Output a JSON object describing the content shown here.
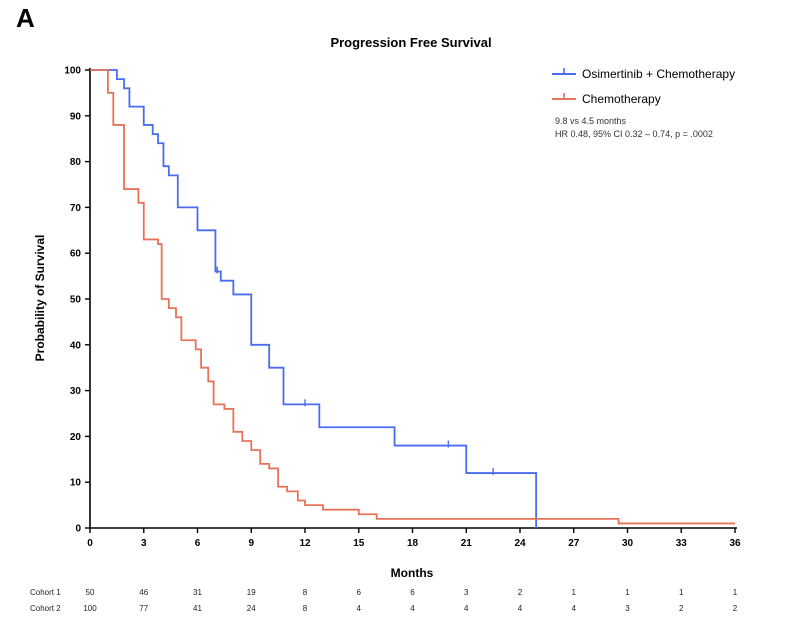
{
  "panel_label": "A",
  "chart_data": {
    "type": "line",
    "title": "Progression Free Survival",
    "xlabel": "Months",
    "ylabel": "Probability of Survival",
    "xlim": [
      0,
      36
    ],
    "ylim": [
      0,
      100
    ],
    "x_ticks": [
      "0",
      "3",
      "6",
      "9",
      "12",
      "15",
      "18",
      "21",
      "24",
      "27",
      "30",
      "33",
      "36"
    ],
    "y_ticks": [
      "0",
      "10",
      "20",
      "30",
      "40",
      "50",
      "60",
      "70",
      "80",
      "90",
      "100"
    ],
    "legend_position": "top-right",
    "annotation": [
      "9.8 vs 4.5 months",
      "HR 0.48, 95% CI 0.32 – 0.74, p = .0002"
    ],
    "series": [
      {
        "name": "Osimertinib + Chemotherapy",
        "color": "#4a6cf0",
        "steps": [
          [
            0,
            100
          ],
          [
            1.5,
            98
          ],
          [
            1.9,
            96
          ],
          [
            2.2,
            92
          ],
          [
            3.0,
            88
          ],
          [
            3.5,
            86
          ],
          [
            3.8,
            84
          ],
          [
            4.1,
            79
          ],
          [
            4.4,
            77
          ],
          [
            4.9,
            70
          ],
          [
            6.0,
            65
          ],
          [
            7.0,
            56
          ],
          [
            7.3,
            54
          ],
          [
            8.0,
            51
          ],
          [
            9.0,
            40
          ],
          [
            10.0,
            35
          ],
          [
            10.8,
            27
          ],
          [
            12.8,
            22
          ],
          [
            17.0,
            18
          ],
          [
            21.0,
            12
          ],
          [
            24.9,
            0
          ]
        ],
        "end_x": 24.9,
        "censors": [
          [
            7.1,
            56
          ],
          [
            12.0,
            27
          ],
          [
            20.0,
            18
          ],
          [
            22.5,
            12
          ]
        ]
      },
      {
        "name": "Chemotherapy",
        "color": "#e8735a",
        "steps": [
          [
            0,
            100
          ],
          [
            1.0,
            95
          ],
          [
            1.3,
            88
          ],
          [
            1.9,
            74
          ],
          [
            2.7,
            71
          ],
          [
            3.0,
            63
          ],
          [
            3.8,
            62
          ],
          [
            4.0,
            50
          ],
          [
            4.4,
            48
          ],
          [
            4.8,
            46
          ],
          [
            5.1,
            41
          ],
          [
            5.9,
            39
          ],
          [
            6.2,
            35
          ],
          [
            6.6,
            32
          ],
          [
            6.9,
            27
          ],
          [
            7.5,
            26
          ],
          [
            8.0,
            21
          ],
          [
            8.5,
            19
          ],
          [
            9.0,
            17
          ],
          [
            9.5,
            14
          ],
          [
            10.0,
            13
          ],
          [
            10.5,
            9
          ],
          [
            11.0,
            8
          ],
          [
            11.6,
            6
          ],
          [
            12.0,
            5
          ],
          [
            13.0,
            4
          ],
          [
            14.0,
            4
          ],
          [
            15.0,
            3
          ],
          [
            16.0,
            2
          ],
          [
            29.5,
            1
          ]
        ],
        "end_x": 36,
        "censors": []
      }
    ],
    "risk_table": {
      "rows": [
        {
          "label": "Cohort 1",
          "values": [
            "50",
            "46",
            "31",
            "19",
            "8",
            "6",
            "6",
            "3",
            "2",
            "1",
            "1",
            "1",
            "1"
          ]
        },
        {
          "label": "Cohort 2",
          "values": [
            "100",
            "77",
            "41",
            "24",
            "8",
            "4",
            "4",
            "4",
            "4",
            "4",
            "3",
            "2",
            "2"
          ]
        }
      ]
    }
  }
}
